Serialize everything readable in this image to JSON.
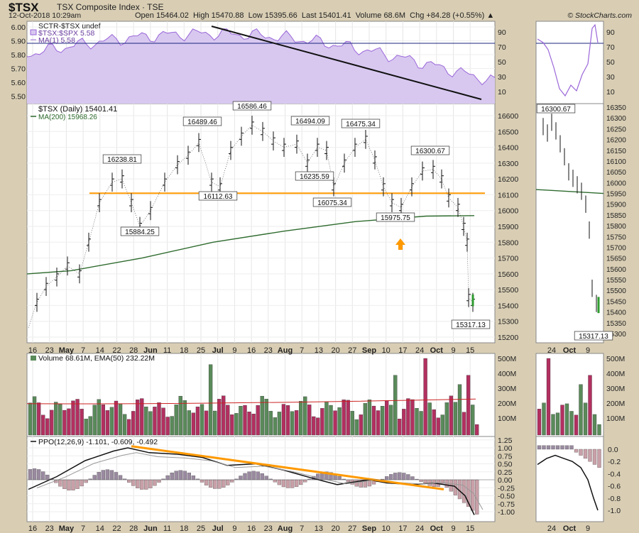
{
  "header": {
    "symbol": "$TSX",
    "name": "TSX Composite Index · TSE",
    "date": "12-Oct-2018 10:29am",
    "ohlc": "Open 15464.02  High 15470.88  Low 15395.66  Last 15401.41  Volume 68.6M  Chg +84.28 (+0.55%) ▲",
    "copyright": "© StockCharts.com"
  },
  "sctr_panel": {
    "legend": [
      "SCTR-$TSX undef",
      "$TSX:$SPX 5.58",
      "MA(1) 5.58"
    ],
    "left_ticks": [
      "6.00",
      "5.90",
      "5.80",
      "5.70",
      "5.60",
      "5.50"
    ],
    "right_ticks": [
      "90",
      "70",
      "50",
      "30",
      "10"
    ]
  },
  "price_panel": {
    "legend": [
      "$TSX (Daily) 15401.41",
      "MA(200) 15968.26"
    ],
    "right_ticks": [
      "16600",
      "16500",
      "16400",
      "16300",
      "16200",
      "16100",
      "16000",
      "15900",
      "15800",
      "15700",
      "15600",
      "15500",
      "15400",
      "15300",
      "15200"
    ],
    "mini_right_ticks": [
      "16350",
      "16300",
      "16250",
      "16200",
      "16150",
      "16100",
      "16050",
      "16000",
      "15950",
      "15900",
      "15850",
      "15800",
      "15750",
      "15700",
      "15650",
      "15600",
      "15550",
      "15500",
      "15450",
      "15400",
      "15350",
      "15300"
    ],
    "x_ticks": [
      "16",
      "23",
      "May",
      "7",
      "14",
      "22",
      "28",
      "Jun",
      "11",
      "18",
      "25",
      "Jul",
      "9",
      "16",
      "23",
      "Aug",
      "7",
      "13",
      "20",
      "27",
      "Sep",
      "10",
      "17",
      "24",
      "Oct",
      "9",
      "15"
    ],
    "mini_x_ticks": [
      "24",
      "Oct",
      "9"
    ]
  },
  "volume_panel": {
    "legend": "Volume 68.61M, EMA(50) 232.22M",
    "right_ticks": [
      "500M",
      "400M",
      "300M",
      "200M",
      "100M"
    ]
  },
  "ppo_panel": {
    "legend": "PPO(12,26,9) -1.101, -0.609, -0.492",
    "right_ticks": [
      "1.25",
      "1.00",
      "0.75",
      "0.50",
      "0.25",
      "0.00",
      "-0.25",
      "-0.50",
      "-0.75",
      "-1.00"
    ],
    "mini_right_ticks": [
      "0.0",
      "-0.2",
      "-0.4",
      "-0.6",
      "-0.8",
      "-1.0"
    ]
  },
  "chart_data": {
    "type": "line",
    "title": "$TSX TSX Composite Index · TSE",
    "price_labels": [
      {
        "value": 16238.81
      },
      {
        "value": 15884.25
      },
      {
        "value": 16489.46
      },
      {
        "value": 16112.63
      },
      {
        "value": 16586.46
      },
      {
        "value": 16494.09
      },
      {
        "value": 16235.59
      },
      {
        "value": 16075.34
      },
      {
        "value": 16475.34
      },
      {
        "value": 15975.75
      },
      {
        "value": 16300.67
      },
      {
        "value": 15317.13
      }
    ],
    "mini_price_labels": [
      {
        "value": 16300.67
      },
      {
        "value": 15317.13
      }
    ],
    "support_line": 16110,
    "ma200": [
      15600,
      15620,
      15700,
      15800,
      15870,
      15930,
      15965,
      15968
    ],
    "ylim": [
      15200,
      16650
    ],
    "colors": {
      "support": "#ff9900",
      "ma200": "#2e6b2e",
      "sctr_fill": "#d8c8f0",
      "sctr_line": "#9a66d9",
      "vol_up": "#5a8a5a",
      "vol_down": "#b23060",
      "ppo_line": "#000000",
      "hist": "#9a8aa0"
    }
  }
}
